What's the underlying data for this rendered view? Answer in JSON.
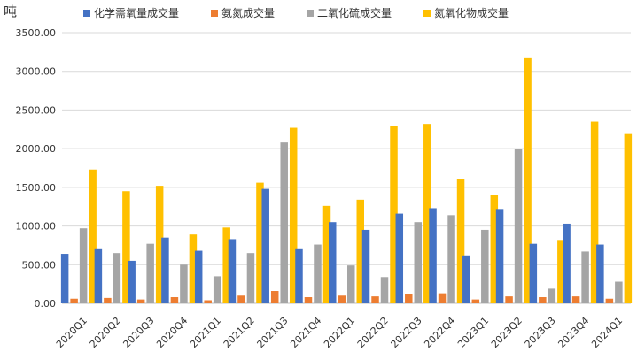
{
  "chart_data": {
    "type": "bar",
    "unit": "吨",
    "categories": [
      "2020Q1",
      "2020Q2",
      "2020Q3",
      "2020Q4",
      "2021Q1",
      "2021Q2",
      "2021Q3",
      "2021Q4",
      "2022Q1",
      "2022Q2",
      "2022Q3",
      "2022Q4",
      "2023Q1",
      "2023Q2",
      "2023Q3",
      "2023Q4",
      "2024Q1"
    ],
    "yticks": [
      "0.00",
      "500.00",
      "1000.00",
      "1500.00",
      "2000.00",
      "2500.00",
      "3000.00",
      "3500.00"
    ],
    "ylim": [
      0,
      3500
    ],
    "grid": true,
    "legend_position": "top",
    "series": [
      {
        "name": "化学需氧量成交量",
        "color": "#4472C4",
        "values": [
          640,
          700,
          550,
          850,
          680,
          830,
          1480,
          700,
          1050,
          950,
          1160,
          1230,
          620,
          1220,
          770,
          1030,
          760
        ]
      },
      {
        "name": "氨氮成交量",
        "color": "#ED7D31",
        "values": [
          60,
          70,
          50,
          80,
          40,
          100,
          160,
          80,
          100,
          90,
          120,
          130,
          50,
          90,
          80,
          90,
          60
        ]
      },
      {
        "name": "二氧化硫成交量",
        "color": "#A5A5A5",
        "values": [
          970,
          650,
          770,
          500,
          350,
          650,
          2080,
          760,
          490,
          340,
          1050,
          1140,
          950,
          2000,
          190,
          670,
          280
        ]
      },
      {
        "name": "氮氧化物成交量",
        "color": "#FFC000",
        "values": [
          1730,
          1450,
          1520,
          890,
          980,
          1560,
          2270,
          1260,
          1340,
          2290,
          2320,
          1610,
          1400,
          3170,
          820,
          2350,
          2200
        ]
      }
    ]
  }
}
